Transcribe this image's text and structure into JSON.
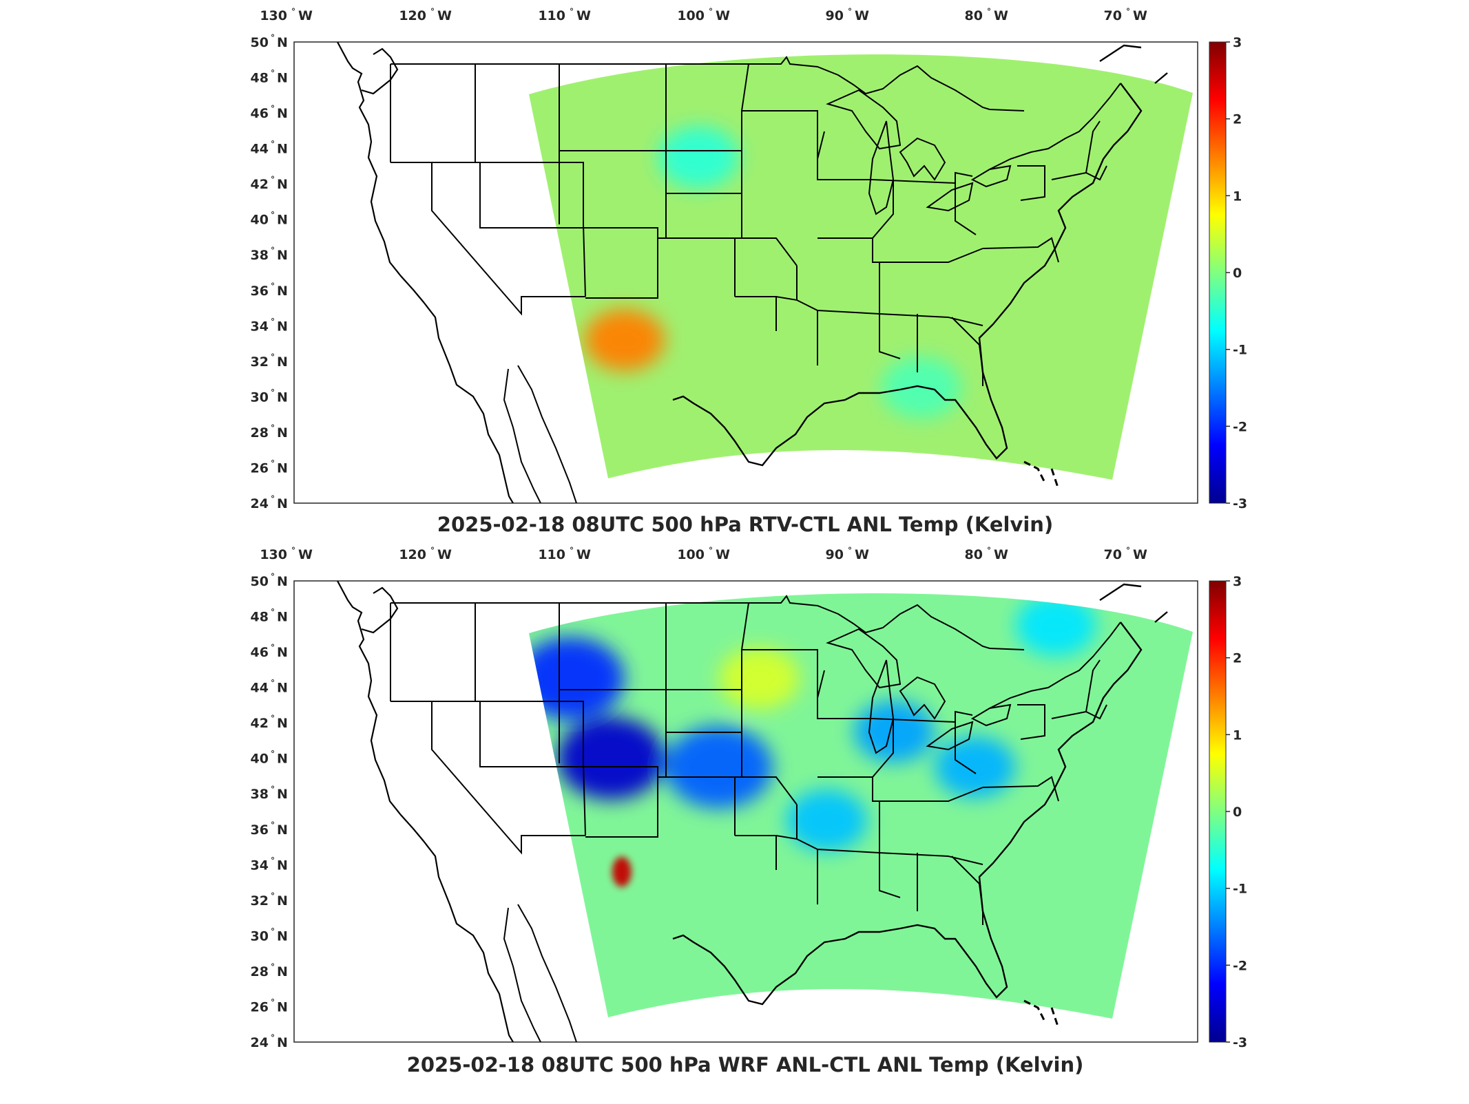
{
  "figure": {
    "panels": [
      {
        "title": "2025-02-18 08UTC 500 hPa RTV-CTL ANL Temp (Kelvin)",
        "field_pattern": "mostly near zero; small scattered warm/cool anomalies",
        "anomalies": [
          {
            "lon": -107.0,
            "lat": 33.2,
            "value": 1.5
          },
          {
            "lon": -101.5,
            "lat": 43.5,
            "value": -0.5
          },
          {
            "lon": -85.0,
            "lat": 30.5,
            "value": -0.3
          }
        ]
      },
      {
        "title": "2025-02-18 08UTC 500 hPa WRF ANL-CTL ANL Temp (Kelvin)",
        "field_pattern": "strong cold anomaly over Rockies; cool band across Midwest; warm spot over New Mexico",
        "anomalies": [
          {
            "lon": -108.0,
            "lat": 40.0,
            "value": -2.6
          },
          {
            "lon": -111.0,
            "lat": 44.5,
            "value": -2.0
          },
          {
            "lon": -100.0,
            "lat": 39.5,
            "value": -1.7
          },
          {
            "lon": -87.0,
            "lat": 41.5,
            "value": -1.3
          },
          {
            "lon": -81.0,
            "lat": 39.5,
            "value": -1.2
          },
          {
            "lon": -92.0,
            "lat": 36.5,
            "value": -1.1
          },
          {
            "lon": -107.2,
            "lat": 33.6,
            "value": 2.6
          },
          {
            "lon": -97.0,
            "lat": 44.5,
            "value": 0.5
          },
          {
            "lon": -75.0,
            "lat": 47.5,
            "value": -0.9
          }
        ]
      }
    ],
    "x_ticks": [
      {
        "deg": "130",
        "dir": "W"
      },
      {
        "deg": "120",
        "dir": "W"
      },
      {
        "deg": "110",
        "dir": "W"
      },
      {
        "deg": "100",
        "dir": "W"
      },
      {
        "deg": "90",
        "dir": "W"
      },
      {
        "deg": "80",
        "dir": "W"
      },
      {
        "deg": "70",
        "dir": "W"
      }
    ],
    "y_ticks": [
      {
        "deg": "50",
        "dir": "N"
      },
      {
        "deg": "48",
        "dir": "N"
      },
      {
        "deg": "46",
        "dir": "N"
      },
      {
        "deg": "44",
        "dir": "N"
      },
      {
        "deg": "42",
        "dir": "N"
      },
      {
        "deg": "40",
        "dir": "N"
      },
      {
        "deg": "38",
        "dir": "N"
      },
      {
        "deg": "36",
        "dir": "N"
      },
      {
        "deg": "34",
        "dir": "N"
      },
      {
        "deg": "32",
        "dir": "N"
      },
      {
        "deg": "30",
        "dir": "N"
      },
      {
        "deg": "28",
        "dir": "N"
      },
      {
        "deg": "26",
        "dir": "N"
      },
      {
        "deg": "24",
        "dir": "N"
      }
    ],
    "colorbar": {
      "ticks": [
        "3",
        "2",
        "1",
        "0",
        "-1",
        "-2",
        "-3"
      ],
      "range": [
        -3,
        3
      ],
      "colormap": "jet"
    },
    "colors": {
      "neutral_field": "#a0f070",
      "cold": "#00008f",
      "warm": "#8f0000",
      "borders": "#000000"
    }
  }
}
